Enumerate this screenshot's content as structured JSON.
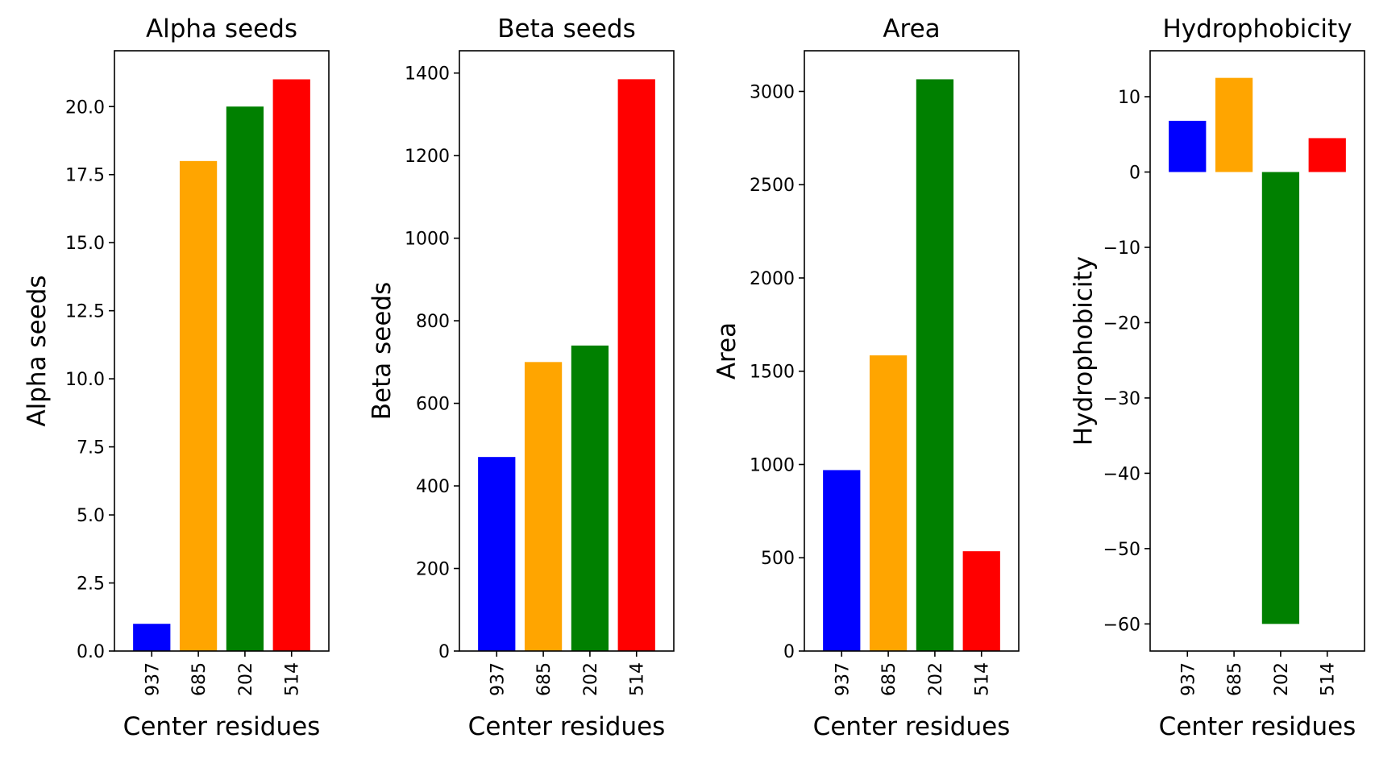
{
  "chart_data": [
    {
      "type": "bar",
      "title": "Alpha seeds",
      "xlabel": "Center residues",
      "ylabel": "Alpha seeds",
      "categories": [
        "937",
        "685",
        "202",
        "514"
      ],
      "values": [
        1,
        18,
        20,
        21
      ],
      "colors": [
        "#0000ff",
        "#ffa500",
        "#008000",
        "#ff0000"
      ],
      "ylim": [
        0,
        22.05
      ],
      "yticks": [
        0,
        2.5,
        5,
        7.5,
        10,
        12.5,
        15,
        17.5,
        20
      ],
      "ytick_labels": [
        "0.0",
        "2.5",
        "5.0",
        "7.5",
        "10.0",
        "12.5",
        "15.0",
        "17.5",
        "20.0"
      ],
      "grid": false,
      "legend": null
    },
    {
      "type": "bar",
      "title": "Beta seeds",
      "xlabel": "Center residues",
      "ylabel": "Beta seeds",
      "categories": [
        "937",
        "685",
        "202",
        "514"
      ],
      "values": [
        470,
        700,
        740,
        1385
      ],
      "colors": [
        "#0000ff",
        "#ffa500",
        "#008000",
        "#ff0000"
      ],
      "ylim": [
        0,
        1454
      ],
      "yticks": [
        0,
        200,
        400,
        600,
        800,
        1000,
        1200,
        1400
      ],
      "ytick_labels": [
        "0",
        "200",
        "400",
        "600",
        "800",
        "1000",
        "1200",
        "1400"
      ],
      "grid": false,
      "legend": null
    },
    {
      "type": "bar",
      "title": "Area",
      "xlabel": "Center residues",
      "ylabel": "Area",
      "categories": [
        "937",
        "685",
        "202",
        "514"
      ],
      "values": [
        970,
        1585,
        3065,
        535
      ],
      "colors": [
        "#0000ff",
        "#ffa500",
        "#008000",
        "#ff0000"
      ],
      "ylim": [
        0,
        3218
      ],
      "yticks": [
        0,
        500,
        1000,
        1500,
        2000,
        2500,
        3000
      ],
      "ytick_labels": [
        "0",
        "500",
        "1000",
        "1500",
        "2000",
        "2500",
        "3000"
      ],
      "grid": false,
      "legend": null
    },
    {
      "type": "bar",
      "title": "Hydrophobicity",
      "xlabel": "Center residues",
      "ylabel": "Hydrophobicity",
      "categories": [
        "937",
        "685",
        "202",
        "514"
      ],
      "values": [
        6.8,
        12.5,
        -60,
        4.5
      ],
      "colors": [
        "#0000ff",
        "#ffa500",
        "#008000",
        "#ff0000"
      ],
      "ylim": [
        -63.6,
        16.1
      ],
      "yticks": [
        10,
        0,
        -10,
        -20,
        -30,
        -40,
        -50,
        -60
      ],
      "ytick_labels": [
        "10",
        "0",
        "−10",
        "−20",
        "−30",
        "−40",
        "−50",
        "−60"
      ],
      "grid": false,
      "legend": null
    }
  ]
}
